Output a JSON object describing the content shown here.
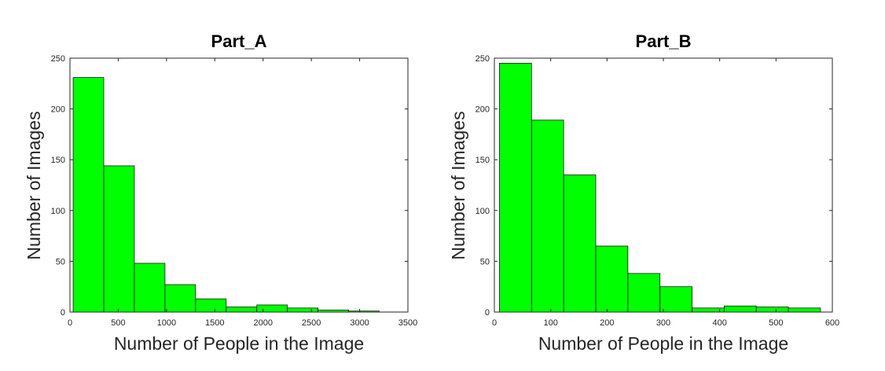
{
  "chart_data": [
    {
      "type": "bar",
      "title": "Part_A",
      "xlabel": "Number of People in the Image",
      "ylabel": "Number of Images",
      "xlim": [
        0,
        3500
      ],
      "ylim": [
        0,
        250
      ],
      "xticks": [
        0,
        500,
        1000,
        1500,
        2000,
        2500,
        3000,
        3500
      ],
      "yticks": [
        0,
        50,
        100,
        150,
        200,
        250
      ],
      "bin_edges": [
        33,
        350,
        667,
        984,
        1301,
        1618,
        1935,
        2252,
        2569,
        2886,
        3203
      ],
      "values": [
        231,
        144,
        48,
        27,
        13,
        5,
        7,
        4,
        2,
        1
      ],
      "grid": false,
      "bar_color": "#00ff00"
    },
    {
      "type": "bar",
      "title": "Part_B",
      "xlabel": "Number of People in the Image",
      "ylabel": "Number of Images",
      "xlim": [
        0,
        600
      ],
      "ylim": [
        0,
        250
      ],
      "xticks": [
        0,
        100,
        200,
        300,
        400,
        500,
        600
      ],
      "yticks": [
        0,
        50,
        100,
        150,
        200,
        250
      ],
      "bin_edges": [
        9,
        66,
        123,
        180,
        237,
        294,
        351,
        408,
        465,
        522,
        579
      ],
      "values": [
        245,
        189,
        135,
        65,
        38,
        25,
        4,
        6,
        5,
        4
      ],
      "grid": false,
      "bar_color": "#00ff00"
    }
  ]
}
